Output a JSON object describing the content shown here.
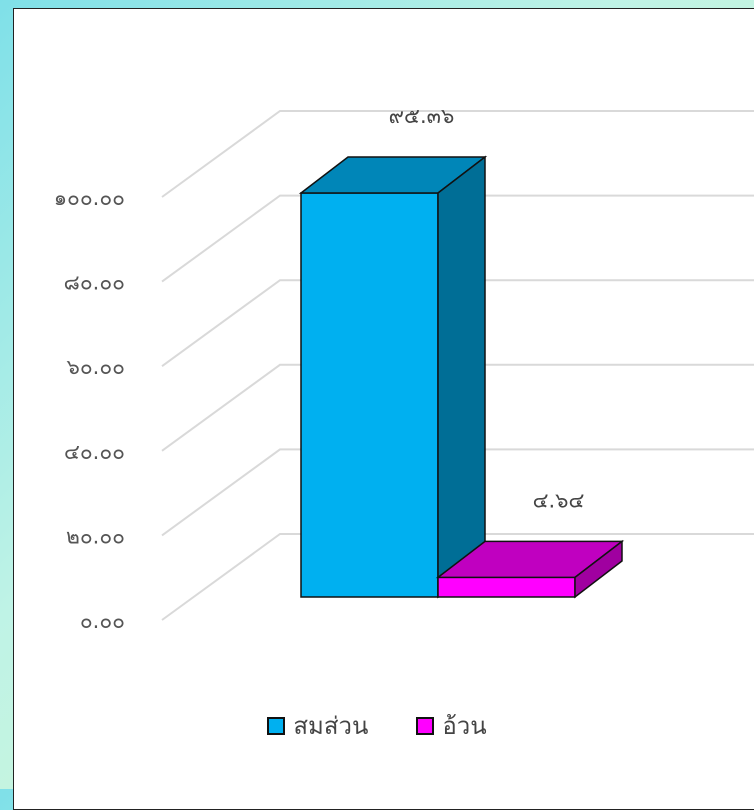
{
  "chart_data": {
    "type": "bar",
    "categories": [
      "สมส่วน",
      "อ้วน"
    ],
    "values": [
      95.36,
      4.64
    ],
    "data_labels": [
      "๙๕.๓๖",
      "๔.๖๔"
    ],
    "y_ticks": [
      "๐.๐๐",
      "๒๐.๐๐",
      "๔๐.๐๐",
      "๖๐.๐๐",
      "๘๐.๐๐",
      "๑๐๐.๐๐"
    ],
    "ylim": [
      0,
      100
    ],
    "legend": [
      "สมส่วน",
      "อ้วน"
    ],
    "legend_position": "bottom",
    "grid": true,
    "style": "3d",
    "colors": {
      "series_front": [
        "#00b0f0",
        "#ff00ff"
      ],
      "series_top": [
        "#0086b8",
        "#c000c0"
      ],
      "series_side": [
        "#006e96",
        "#a000a0"
      ],
      "grid": "#d9d9d9"
    }
  }
}
